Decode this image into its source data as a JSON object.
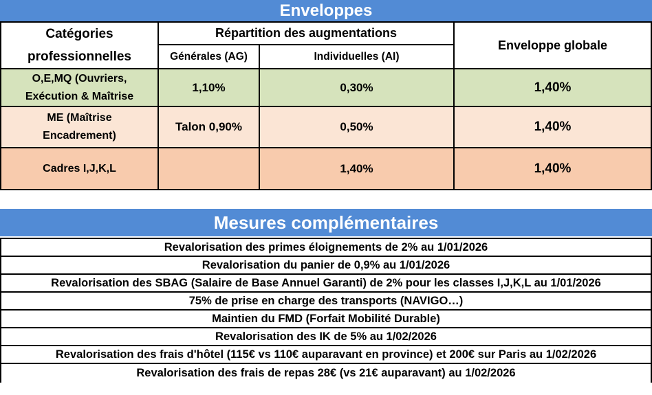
{
  "enveloppes_table": {
    "title": "Enveloppes",
    "headers": {
      "categories": "Catégories\nprofessionnelles",
      "repartition": "Répartition des augmentations",
      "generales": "Générales (AG)",
      "individuelles": "Individuelles (AI)",
      "enveloppe_globale": "Enveloppe globale"
    },
    "rows": [
      {
        "categorie": "O,E,MQ (Ouvriers,\nExécution & Maîtrise",
        "generales": "1,10%",
        "individuelles": "0,30%",
        "enveloppe_globale": "1,40%",
        "row_color": "#d6e3bc"
      },
      {
        "categorie": "ME (Maîtrise\nEncadrement)",
        "generales": "Talon 0,90%",
        "individuelles": "0,50%",
        "enveloppe_globale": "1,40%",
        "row_color": "#fbe5d5"
      },
      {
        "categorie": "Cadres I,J,K,L",
        "generales": "",
        "individuelles": "1,40%",
        "enveloppe_globale": "1,40%",
        "row_color": "#f8cbad"
      }
    ]
  },
  "mesures": {
    "title": "Mesures complémentaires",
    "items": [
      "Revalorisation des primes éloignements de 2% au 1/01/2026",
      "Revalorisation du panier de 0,9% au 1/01/2026",
      "Revalorisation des SBAG (Salaire de Base Annuel Garanti) de 2% pour les classes I,J,K,L au 1/01/2026",
      "75% de prise en charge des transports (NAVIGO…)",
      "Maintien du FMD (Forfait Mobilité Durable)",
      "Revalorisation des IK  de 5% au 1/02/2026",
      "Revalorisation des frais d'hôtel (115€ vs 110€ auparavant en province) et 200€ sur Paris au 1/02/2026",
      "Revalorisation des frais de repas 28€ (vs 21€ auparavant) au 1/02/2026"
    ]
  },
  "colors": {
    "header_blue": "#528bd5",
    "header_text": "#ffffff",
    "row_green": "#d6e3bc",
    "row_peach_light": "#fbe5d5",
    "row_peach_dark": "#f8cbad",
    "border_black": "#000000",
    "body_text": "#000000"
  }
}
